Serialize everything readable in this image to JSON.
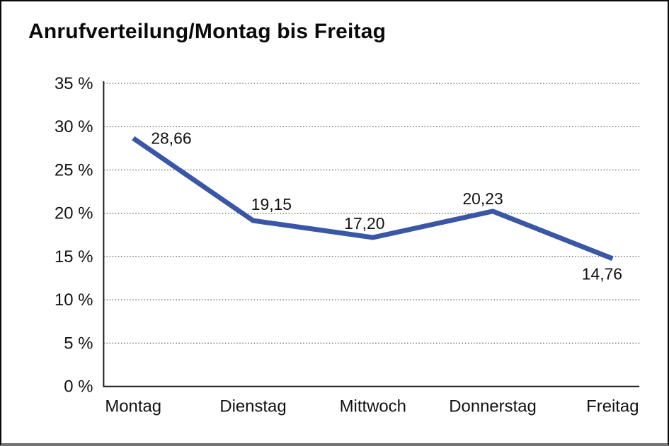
{
  "title": "Anrufverteilung/Montag bis Freitag",
  "chart_data": {
    "type": "line",
    "title": "Anrufverteilung/Montag bis Freitag",
    "categories": [
      "Montag",
      "Dienstag",
      "Mittwoch",
      "Donnerstag",
      "Freitag"
    ],
    "values": [
      28.66,
      19.15,
      17.2,
      20.23,
      14.76
    ],
    "value_labels": [
      "28,66",
      "19,15",
      "17,20",
      "20,23",
      "14,76"
    ],
    "xlabel": "",
    "ylabel": "",
    "ylim": [
      0,
      35
    ],
    "y_ticks": [
      0,
      5,
      10,
      15,
      20,
      25,
      30,
      35
    ],
    "y_tick_labels": [
      "0 %",
      "5 %",
      "10 %",
      "15 %",
      "20 %",
      "25 %",
      "30 %",
      "35 %"
    ],
    "grid": "horizontal-dotted",
    "legend_position": "none",
    "series_name": "Anrufverteilung"
  },
  "colors": {
    "line": "#3A57A7",
    "axis": "#1a1a1a",
    "grid": "#666666",
    "text": "#111111",
    "background": "#ffffff"
  }
}
